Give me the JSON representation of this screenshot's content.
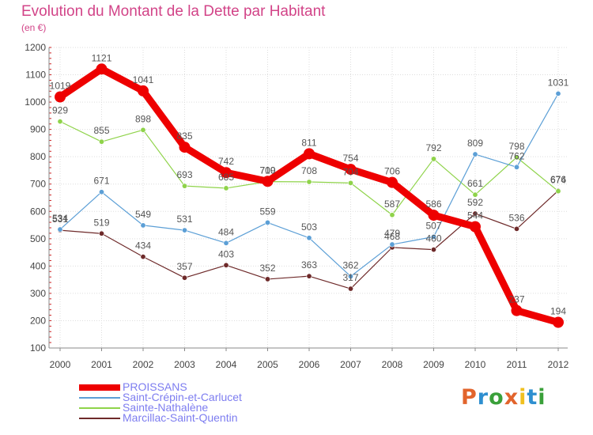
{
  "title": "Evolution du Montant de la Dette par Habitant",
  "subtitle": "(en €)",
  "brand": {
    "text": "Proxiti",
    "letter_colors": [
      "#e2642c",
      "#2e8fd0",
      "#3aa03a",
      "#e2642c",
      "#f0c020",
      "#2e8fd0",
      "#3aa03a"
    ]
  },
  "chart_data": {
    "type": "line",
    "x": [
      "2000",
      "2001",
      "2002",
      "2003",
      "2004",
      "2005",
      "2006",
      "2007",
      "2008",
      "2009",
      "2010",
      "2011",
      "2012"
    ],
    "ylim": [
      100,
      1200
    ],
    "yticks": [
      "100",
      "200",
      "300",
      "400",
      "500",
      "600",
      "700",
      "800",
      "900",
      "1000",
      "1100",
      "1200"
    ],
    "grid": true,
    "legend_position": "bottom-left",
    "series": [
      {
        "name": "PROISSANS",
        "color": "#ee0000",
        "values": [
          1019,
          1121,
          1041,
          835,
          742,
          710,
          811,
          754,
          706,
          586,
          544,
          237,
          194
        ]
      },
      {
        "name": "Saint-Crépin-et-Carlucet",
        "color": "#5c9fd6",
        "values": [
          534,
          671,
          549,
          531,
          484,
          559,
          503,
          362,
          479,
          507,
          809,
          762,
          1031
        ]
      },
      {
        "name": "Sainte-Nathalène",
        "color": "#8fd34a",
        "values": [
          929,
          855,
          898,
          693,
          685,
          709,
          708,
          704,
          587,
          792,
          661,
          798,
          674
        ]
      },
      {
        "name": "Marcillac-Saint-Quentin",
        "color": "#6e2a2a",
        "values": [
          531,
          519,
          434,
          357,
          403,
          352,
          363,
          317,
          468,
          460,
          592,
          536,
          676
        ]
      }
    ],
    "point_labels": [
      [
        "1019",
        "1121",
        "1041",
        "835",
        "742",
        "710",
        "811",
        "754",
        "706",
        "586",
        "544",
        "237",
        "194"
      ],
      [
        "534",
        "671",
        "549",
        "531",
        "484",
        "559",
        "503",
        "362",
        "479",
        "507",
        "809",
        "762",
        "1031"
      ],
      [
        "929",
        "855",
        "898",
        "693",
        "685",
        "709",
        "708",
        "704",
        "587",
        "792",
        "661",
        "798",
        "674"
      ],
      [
        "531",
        "519",
        "434",
        "357",
        "403",
        "352",
        "363",
        "317",
        "468",
        "460",
        "592",
        "536",
        "676"
      ]
    ]
  }
}
